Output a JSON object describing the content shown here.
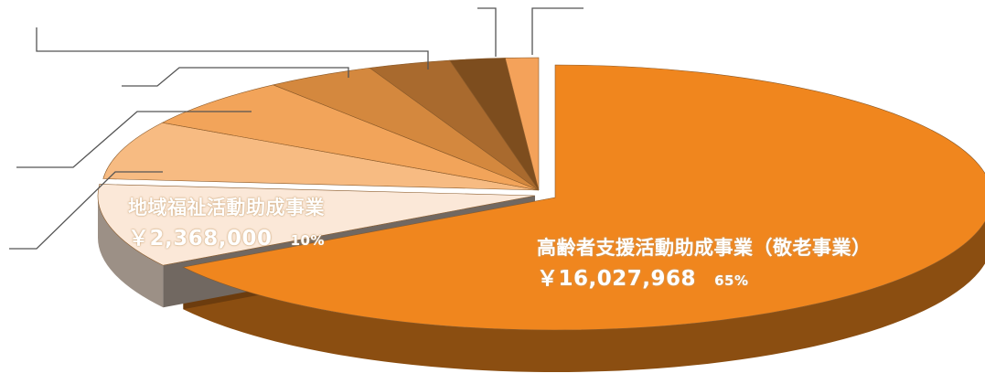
{
  "chart_data": {
    "type": "pie",
    "style": "3d-exploded",
    "legend": "none",
    "slices": [
      {
        "label": "高齢者支援活動助成事業（敬老事業）",
        "amount": "￥16,027,968",
        "percent": "65%",
        "value": 65,
        "color": "#f0861e",
        "shown": true
      },
      {
        "label": "地域福祉活動助成事業",
        "amount": "￥2,368,000",
        "percent": "10%",
        "value": 10,
        "color": "#fbe8d8",
        "shown": true
      },
      {
        "label": "",
        "amount": "",
        "percent": "",
        "value": 7,
        "color": "#f7bb82",
        "shown": false
      },
      {
        "label": "",
        "amount": "",
        "percent": "",
        "value": 6,
        "color": "#f2a45a",
        "shown": false
      },
      {
        "label": "",
        "amount": "",
        "percent": "",
        "value": 4,
        "color": "#d4883e",
        "shown": false
      },
      {
        "label": "",
        "amount": "",
        "percent": "",
        "value": 3,
        "color": "#a96a2e",
        "shown": false
      },
      {
        "label": "",
        "amount": "",
        "percent": "",
        "value": 2,
        "color": "#7d4d1e",
        "shown": false
      },
      {
        "label": "",
        "amount": "",
        "percent": "",
        "value": 1.2,
        "color": "#f4a25a",
        "shown": false
      }
    ]
  }
}
